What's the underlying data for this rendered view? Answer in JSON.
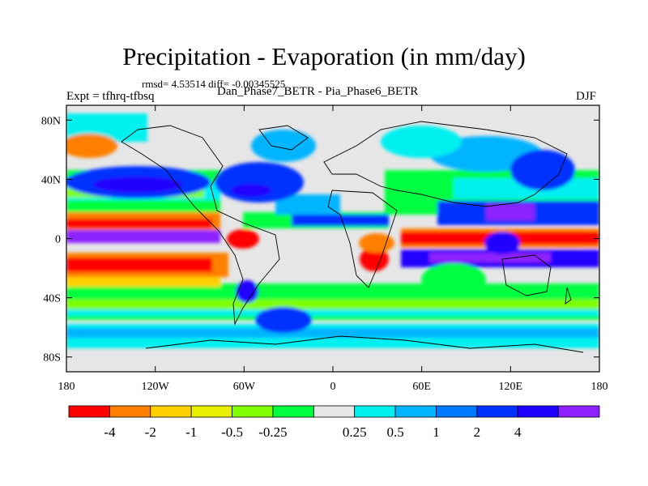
{
  "title": "Precipitation - Evaporation (in mm/day)",
  "stats": "rmsd= 4.53514 diff= -0.00345525",
  "expt": "Expt = tfhrq-tfbsq",
  "difference_name": "Dan_Phase7_BETR - Pia_Phase6_BETR",
  "season": "DJF",
  "map": {
    "lon_ticks": [
      {
        "lon": -180,
        "label": "180"
      },
      {
        "lon": -120,
        "label": "120W"
      },
      {
        "lon": -60,
        "label": "60W"
      },
      {
        "lon": 0,
        "label": "0"
      },
      {
        "lon": 60,
        "label": "60E"
      },
      {
        "lon": 120,
        "label": "120E"
      },
      {
        "lon": 180,
        "label": "180"
      }
    ],
    "lat_ticks": [
      {
        "lat": 80,
        "label": "80N"
      },
      {
        "lat": 40,
        "label": "40N"
      },
      {
        "lat": 0,
        "label": "0"
      },
      {
        "lat": -40,
        "label": "40S"
      },
      {
        "lat": -80,
        "label": "80S"
      }
    ],
    "lon_range": [
      -180,
      180
    ],
    "lat_range": [
      -90,
      90
    ]
  },
  "colorbar": {
    "colors": [
      "#ff0000",
      "#ff8000",
      "#ffd000",
      "#e8f000",
      "#80ff00",
      "#00ff40",
      "#e6e6e6",
      "#00f0f0",
      "#00b4ff",
      "#0078ff",
      "#0032ff",
      "#2000ff",
      "#8c20ff"
    ],
    "labels": [
      "-4",
      "-2",
      "-1",
      "-0.5",
      "-0.25",
      "0.25",
      "0.5",
      "1",
      "2",
      "4"
    ]
  }
}
